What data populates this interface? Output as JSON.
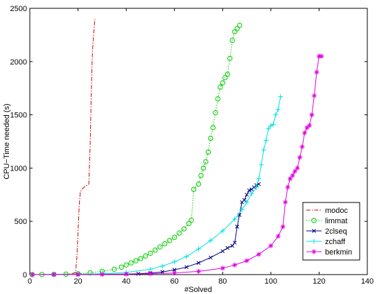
{
  "chart_data": {
    "type": "line",
    "title": "",
    "xlabel": "#Solved",
    "ylabel": "CPU−Time needed (s)",
    "xlim": [
      0,
      140
    ],
    "ylim": [
      0,
      2500
    ],
    "xticks": [
      0,
      20,
      40,
      60,
      80,
      100,
      120,
      140
    ],
    "yticks": [
      0,
      500,
      1000,
      1500,
      2000,
      2500
    ],
    "grid": false,
    "legend_position": "lower-right",
    "series": [
      {
        "name": "modoc",
        "color": "#cc0000",
        "line": "dash-dot",
        "marker": "none",
        "x": [
          1,
          10,
          17,
          19,
          19.5,
          20,
          20.5,
          21,
          22,
          23,
          24,
          24.5,
          25,
          25.5,
          26,
          27
        ],
        "y": [
          1,
          2,
          5,
          20,
          150,
          400,
          650,
          780,
          810,
          830,
          840,
          850,
          1200,
          1700,
          2100,
          2400
        ]
      },
      {
        "name": "limmat",
        "color": "#00cc00",
        "line": "dotted",
        "marker": "circle",
        "x": [
          1,
          5,
          10,
          15,
          20,
          25,
          30,
          35,
          38,
          40,
          42,
          44,
          46,
          48,
          50,
          52,
          54,
          56,
          58,
          60,
          62,
          64,
          66,
          67,
          68,
          70,
          71,
          72,
          73,
          74,
          75,
          76,
          77,
          78,
          79,
          80,
          81,
          82,
          83,
          84,
          85,
          86,
          87
        ],
        "y": [
          0,
          1,
          2,
          4,
          8,
          16,
          30,
          50,
          70,
          90,
          110,
          130,
          150,
          175,
          200,
          230,
          260,
          290,
          320,
          350,
          390,
          430,
          480,
          510,
          800,
          850,
          930,
          1000,
          1060,
          1150,
          1280,
          1380,
          1520,
          1650,
          1760,
          1800,
          1850,
          1880,
          2030,
          2200,
          2280,
          2310,
          2340
        ]
      },
      {
        "name": "2clseq",
        "color": "#000080",
        "line": "solid",
        "marker": "x",
        "x": [
          1,
          10,
          20,
          30,
          40,
          45,
          50,
          55,
          60,
          65,
          70,
          75,
          80,
          82,
          84,
          85,
          86,
          87,
          88,
          89,
          90,
          91,
          92,
          93,
          94,
          95
        ],
        "y": [
          0,
          1,
          2,
          3,
          5,
          8,
          15,
          25,
          45,
          70,
          110,
          160,
          220,
          250,
          270,
          300,
          450,
          560,
          680,
          700,
          750,
          790,
          800,
          820,
          840,
          850
        ]
      },
      {
        "name": "zchaff",
        "color": "#00e0e0",
        "line": "solid",
        "marker": "plus",
        "x": [
          1,
          10,
          20,
          30,
          40,
          50,
          55,
          60,
          65,
          70,
          75,
          80,
          85,
          88,
          90,
          92,
          94,
          95,
          96,
          97,
          98,
          99,
          100,
          101,
          102,
          103,
          104
        ],
        "y": [
          0,
          1,
          3,
          8,
          20,
          50,
          80,
          120,
          170,
          240,
          320,
          410,
          520,
          610,
          680,
          760,
          820,
          900,
          1030,
          1170,
          1260,
          1370,
          1400,
          1410,
          1500,
          1550,
          1670
        ]
      },
      {
        "name": "berkmin",
        "color": "#e000e0",
        "line": "solid",
        "marker": "star",
        "x": [
          1,
          10,
          20,
          30,
          40,
          50,
          60,
          70,
          80,
          85,
          90,
          95,
          100,
          103,
          105,
          106,
          107,
          108,
          109,
          110,
          111,
          112,
          113,
          114,
          115,
          116,
          117,
          118,
          119,
          120,
          121
        ],
        "y": [
          0,
          0,
          1,
          2,
          4,
          8,
          15,
          30,
          60,
          90,
          130,
          190,
          270,
          360,
          450,
          680,
          820,
          900,
          930,
          970,
          1000,
          1100,
          1200,
          1330,
          1380,
          1400,
          1500,
          1680,
          1900,
          2050,
          2050
        ]
      }
    ]
  }
}
